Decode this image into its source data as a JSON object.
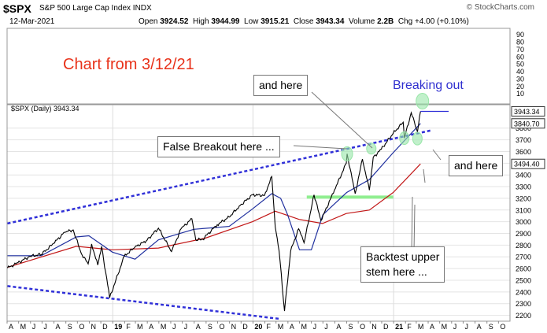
{
  "header": {
    "symbol": "$SPX",
    "name": "S&P 500 Large Cap Index INDX",
    "brand": "© StockCharts.com",
    "date": "12-Mar-2021",
    "open_label": "Open",
    "open": "3924.52",
    "high_label": "High",
    "high": "3944.99",
    "low_label": "Low",
    "low": "3915.21",
    "close_label": "Close",
    "close": "3943.34",
    "volume_label": "Volume",
    "volume": "2.2B",
    "chg_label": "Chg",
    "chg": "+4.00 (+0.10%)"
  },
  "colors": {
    "price": "#000000",
    "ma_short": "#1f2f9e",
    "ma_long": "#c21818",
    "trendline": "#3030d8",
    "support": "#90ee90",
    "highlight": "#98e6a8",
    "title_red": "#e8321a",
    "title_blue": "#3030d0"
  },
  "annotations": {
    "chart_from": "Chart from 3/12/21",
    "breaking_out": "Breaking out",
    "and_here_top": "and here",
    "false_breakout": "False Breakout here ...",
    "and_here_right": "and here",
    "backtest_line1": "Backtest upper",
    "backtest_line2": "stem here ..."
  },
  "chart_data": {
    "type": "line",
    "title": "$SPX (Daily) 3943.34",
    "y_ticks": [
      2200,
      2300,
      2400,
      2500,
      2600,
      2700,
      2800,
      2900,
      3000,
      3100,
      3200,
      3300,
      3400,
      3500,
      3600,
      3700,
      3800
    ],
    "right_value_labels": [
      "3943.34",
      "3840.70",
      "3494.40"
    ],
    "volume_ticks": [
      10,
      20,
      30,
      40,
      50,
      60,
      70,
      80,
      90
    ],
    "x_ticks": [
      "A",
      "M",
      "J",
      "J",
      "A",
      "S",
      "O",
      "N",
      "D",
      "19",
      "F",
      "M",
      "A",
      "M",
      "J",
      "J",
      "A",
      "S",
      "O",
      "N",
      "D",
      "20",
      "F",
      "M",
      "A",
      "M",
      "J",
      "J",
      "A",
      "S",
      "O",
      "N",
      "D",
      "21",
      "F",
      "M",
      "A",
      "M",
      "J",
      "J",
      "A",
      "S",
      "O"
    ],
    "ylim": [
      2150,
      4000
    ],
    "series": [
      {
        "values": [
          [
            "2018-04-02",
            2605
          ],
          [
            "2018-04-24",
            2640
          ],
          [
            "2018-05-31",
            2705
          ],
          [
            "2018-06-29",
            2720
          ],
          [
            "2018-07-31",
            2815
          ],
          [
            "2018-08-29",
            2910
          ],
          [
            "2018-09-20",
            2930
          ],
          [
            "2018-10-11",
            2730
          ],
          [
            "2018-10-29",
            2640
          ],
          [
            "2018-11-07",
            2810
          ],
          [
            "2018-11-23",
            2630
          ],
          [
            "2018-12-03",
            2790
          ],
          [
            "2018-12-24",
            2350
          ],
          [
            "2019-01-31",
            2705
          ],
          [
            "2019-02-28",
            2785
          ],
          [
            "2019-03-29",
            2835
          ],
          [
            "2019-04-30",
            2945
          ],
          [
            "2019-06-03",
            2745
          ],
          [
            "2019-06-28",
            2940
          ],
          [
            "2019-07-26",
            3025
          ],
          [
            "2019-08-05",
            2845
          ],
          [
            "2019-08-23",
            2850
          ],
          [
            "2019-09-30",
            2975
          ],
          [
            "2019-10-31",
            3040
          ],
          [
            "2019-11-29",
            3140
          ],
          [
            "2019-12-31",
            3230
          ],
          [
            "2020-01-31",
            3225
          ],
          [
            "2020-02-19",
            3386
          ],
          [
            "2020-02-28",
            2955
          ],
          [
            "2020-03-09",
            2750
          ],
          [
            "2020-03-23",
            2237
          ],
          [
            "2020-04-08",
            2750
          ],
          [
            "2020-04-29",
            2940
          ],
          [
            "2020-05-13",
            2820
          ],
          [
            "2020-06-08",
            3230
          ],
          [
            "2020-06-26",
            3010
          ],
          [
            "2020-07-31",
            3270
          ],
          [
            "2020-08-31",
            3500
          ],
          [
            "2020-09-02",
            3580
          ],
          [
            "2020-09-23",
            3240
          ],
          [
            "2020-10-12",
            3535
          ],
          [
            "2020-10-30",
            3270
          ],
          [
            "2020-11-09",
            3550
          ],
          [
            "2020-11-30",
            3620
          ],
          [
            "2020-12-31",
            3756
          ],
          [
            "2021-01-26",
            3850
          ],
          [
            "2021-01-29",
            3714
          ],
          [
            "2021-02-16",
            3932
          ],
          [
            "2021-03-04",
            3768
          ],
          [
            "2021-03-12",
            3943
          ]
        ]
      },
      {
        "name": "MA short",
        "values": [
          [
            "2018-04-02",
            2710
          ],
          [
            "2018-06-29",
            2710
          ],
          [
            "2018-09-28",
            2870
          ],
          [
            "2018-10-31",
            2880
          ],
          [
            "2018-12-31",
            2740
          ],
          [
            "2019-02-28",
            2680
          ],
          [
            "2019-04-30",
            2845
          ],
          [
            "2019-07-31",
            2935
          ],
          [
            "2019-10-31",
            2960
          ],
          [
            "2019-12-31",
            3110
          ],
          [
            "2020-02-19",
            3240
          ],
          [
            "2020-03-13",
            3200
          ],
          [
            "2020-03-31",
            3060
          ],
          [
            "2020-05-01",
            2760
          ],
          [
            "2020-06-01",
            2760
          ],
          [
            "2020-07-01",
            3060
          ],
          [
            "2020-09-01",
            3250
          ],
          [
            "2020-10-30",
            3360
          ],
          [
            "2020-12-31",
            3590
          ],
          [
            "2021-03-12",
            3840
          ]
        ]
      },
      {
        "name": "MA long",
        "values": [
          [
            "2018-04-02",
            2610
          ],
          [
            "2018-09-28",
            2790
          ],
          [
            "2018-12-31",
            2760
          ],
          [
            "2019-04-30",
            2775
          ],
          [
            "2019-08-30",
            2860
          ],
          [
            "2019-12-31",
            3000
          ],
          [
            "2020-02-28",
            3090
          ],
          [
            "2020-04-30",
            3020
          ],
          [
            "2020-06-30",
            2985
          ],
          [
            "2020-08-31",
            3070
          ],
          [
            "2020-10-30",
            3100
          ],
          [
            "2020-12-31",
            3250
          ],
          [
            "2021-03-12",
            3494
          ]
        ]
      }
    ],
    "trendlines": [
      {
        "name": "upper",
        "values": [
          [
            "2018-04-02",
            2985
          ],
          [
            "2021-04-08",
            3780
          ]
        ]
      },
      {
        "name": "lower",
        "values": [
          [
            "2018-04-02",
            2450
          ],
          [
            "2020-03-10",
            2170
          ]
        ]
      }
    ],
    "support_line": {
      "y": 3210,
      "x": [
        "2020-05-20",
        "2020-12-31"
      ]
    }
  }
}
